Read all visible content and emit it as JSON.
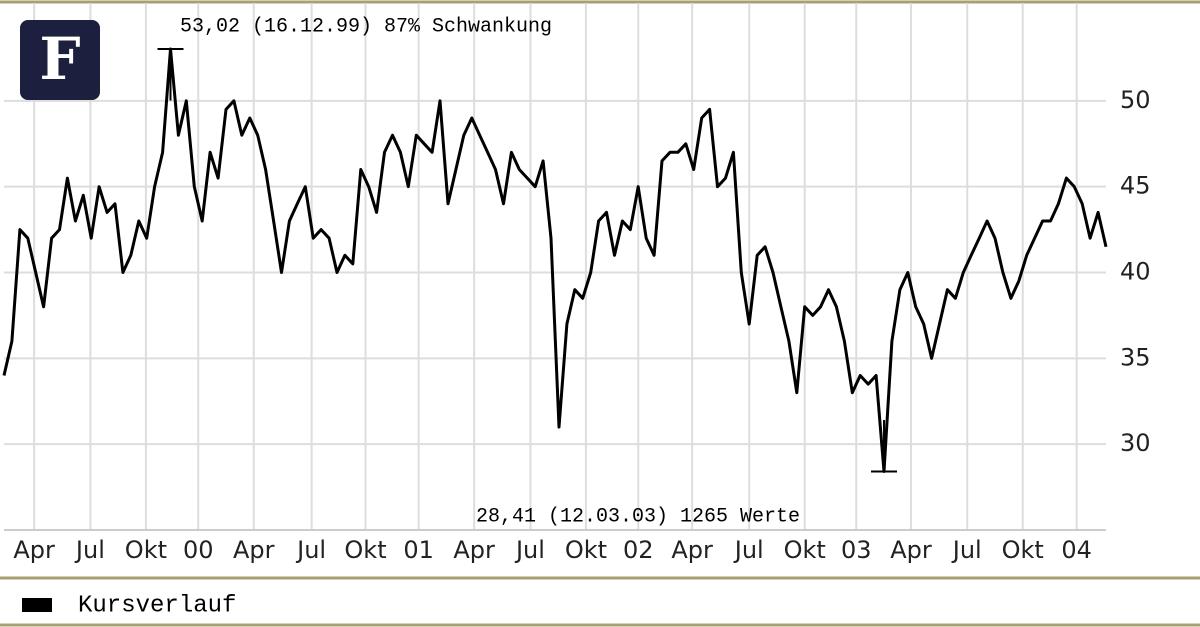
{
  "logo": "F",
  "chart_data": {
    "type": "line",
    "annotation_top": "53,02 (16.12.99) 87% Schwankung",
    "annotation_bottom": "28,41 (12.03.03) 1265 Werte",
    "series": [
      {
        "name": "Kursverlauf",
        "color": "#000000",
        "values": [
          34,
          36,
          42.5,
          42,
          40,
          38,
          42,
          42.5,
          45.5,
          43,
          44.5,
          42,
          45,
          43.5,
          44,
          40,
          41,
          43,
          42,
          45,
          47,
          53.02,
          48,
          50,
          45,
          43,
          47,
          45.5,
          49.5,
          50,
          48,
          49,
          48,
          46,
          43,
          40,
          43,
          44,
          45,
          42,
          42.5,
          42,
          40,
          41,
          40.5,
          46,
          45,
          43.5,
          47,
          48,
          47,
          45,
          48,
          47.5,
          47,
          50,
          44,
          46,
          48,
          49,
          48,
          47,
          46,
          44,
          47,
          46,
          45.5,
          45,
          46.5,
          42,
          31,
          37,
          39,
          38.5,
          40,
          43,
          43.5,
          41,
          43,
          42.5,
          45,
          42,
          41,
          46.5,
          47,
          47,
          47.5,
          46,
          49,
          49.5,
          45,
          45.5,
          47,
          40,
          37,
          41,
          41.5,
          40,
          38,
          36,
          33,
          38,
          37.5,
          38,
          39,
          38,
          36,
          33,
          34,
          33.5,
          34,
          28.41,
          36,
          39,
          40,
          38,
          37,
          35,
          37,
          39,
          38.5,
          40,
          41,
          42,
          43,
          42,
          40,
          38.5,
          39.5,
          41,
          42,
          43,
          43,
          44,
          45.5,
          45,
          44,
          42,
          43.5,
          41.5
        ]
      }
    ],
    "xlim": [
      0,
      139
    ],
    "xticks": [
      {
        "value": 3.8,
        "label": "Apr"
      },
      {
        "value": 10.9,
        "label": "Jul"
      },
      {
        "value": 17.9,
        "label": "Okt"
      },
      {
        "value": 24.5,
        "label": "00"
      },
      {
        "value": 31.5,
        "label": "Apr"
      },
      {
        "value": 38.8,
        "label": "Jul"
      },
      {
        "value": 45.6,
        "label": "Okt"
      },
      {
        "value": 52.3,
        "label": "01"
      },
      {
        "value": 59.3,
        "label": "Apr"
      },
      {
        "value": 66.4,
        "label": "Jul"
      },
      {
        "value": 73.4,
        "label": "Okt"
      },
      {
        "value": 80,
        "label": "02"
      },
      {
        "value": 86.8,
        "label": "Apr"
      },
      {
        "value": 94,
        "label": "Jul"
      },
      {
        "value": 101,
        "label": "Okt"
      },
      {
        "value": 107.5,
        "label": "03"
      },
      {
        "value": 114.4,
        "label": "Apr"
      },
      {
        "value": 121.5,
        "label": "Jul"
      },
      {
        "value": 128.5,
        "label": "Okt"
      },
      {
        "value": 135.3,
        "label": "04"
      }
    ],
    "ylim": [
      25,
      55.7
    ],
    "yticks": [
      30,
      35,
      40,
      45,
      50
    ],
    "grid": true
  }
}
